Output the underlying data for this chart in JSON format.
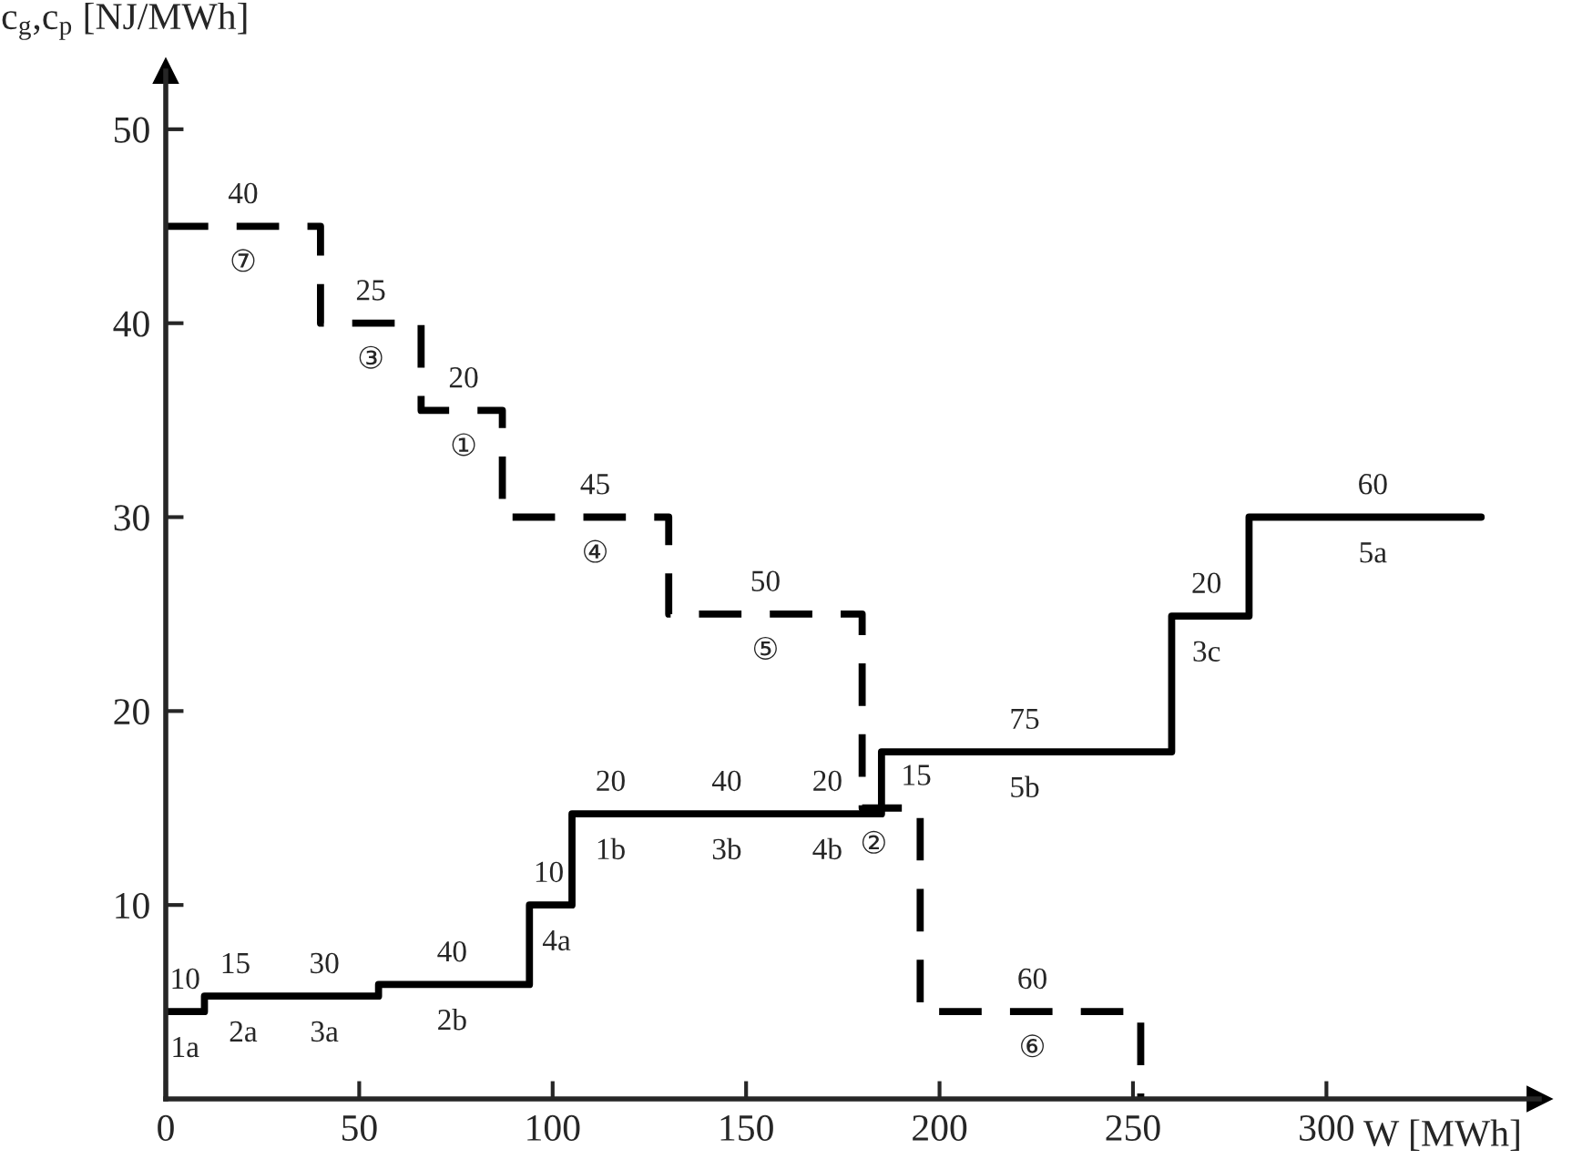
{
  "chart_data": {
    "type": "step",
    "ylabel": "c$_{g}$,c$_{p}$ [NJ/MWh]",
    "xlabel": "W [MWh]",
    "xlim": [
      0,
      355
    ],
    "ylim": [
      0,
      53
    ],
    "xticks": [
      0,
      50,
      100,
      150,
      200,
      250,
      300
    ],
    "yticks": [
      10,
      20,
      30,
      40,
      50
    ],
    "grid": false,
    "legend": false,
    "series": [
      {
        "color": "#000000",
        "line_style": "dashed",
        "x": [
          0,
          40,
          66,
          87,
          130,
          180,
          195,
          252
        ],
        "values": [
          45,
          40,
          35.5,
          30,
          25,
          15,
          4.5,
          0
        ]
      },
      {
        "color": "#000000",
        "line_style": "solid",
        "x": [
          0,
          10,
          55,
          94,
          105,
          185,
          260,
          280,
          340
        ],
        "values": [
          4.5,
          5.3,
          5.9,
          10,
          14.7,
          17.9,
          24.9,
          30,
          30
        ]
      }
    ],
    "annotations": [
      {
        "text": "40",
        "x": 20,
        "y": 45
      },
      {
        "text": "⑦",
        "x": 20,
        "y": 45
      },
      {
        "text": "25",
        "x": 53,
        "y": 40
      },
      {
        "text": "③",
        "x": 53,
        "y": 40
      },
      {
        "text": "20",
        "x": 77,
        "y": 35.5
      },
      {
        "text": "①",
        "x": 77,
        "y": 35.5
      },
      {
        "text": "45",
        "x": 111,
        "y": 30
      },
      {
        "text": "④",
        "x": 111,
        "y": 30
      },
      {
        "text": "50",
        "x": 155,
        "y": 25
      },
      {
        "text": "⑤",
        "x": 155,
        "y": 25
      },
      {
        "text": "15",
        "x": 194,
        "y": 15
      },
      {
        "text": "②",
        "x": 183,
        "y": 15
      },
      {
        "text": "60",
        "x": 224,
        "y": 4.5
      },
      {
        "text": "⑥",
        "x": 224,
        "y": 4.5
      },
      {
        "text": "10",
        "x": 5,
        "y": 4.5
      },
      {
        "text": "1a",
        "x": 5,
        "y": 4.5
      },
      {
        "text": "15",
        "x": 18,
        "y": 5.3
      },
      {
        "text": "2a",
        "x": 20,
        "y": 5.3
      },
      {
        "text": "30",
        "x": 41,
        "y": 5.3
      },
      {
        "text": "3a",
        "x": 41,
        "y": 5.3
      },
      {
        "text": "40",
        "x": 74,
        "y": 5.9
      },
      {
        "text": "2b",
        "x": 74,
        "y": 5.9
      },
      {
        "text": "10",
        "x": 99,
        "y": 10
      },
      {
        "text": "4a",
        "x": 101,
        "y": 10
      },
      {
        "text": "20",
        "x": 115,
        "y": 14.7
      },
      {
        "text": "1b",
        "x": 115,
        "y": 14.7
      },
      {
        "text": "40",
        "x": 145,
        "y": 14.7
      },
      {
        "text": "3b",
        "x": 145,
        "y": 14.7
      },
      {
        "text": "20",
        "x": 171,
        "y": 14.7
      },
      {
        "text": "4b",
        "x": 171,
        "y": 14.7
      },
      {
        "text": "75",
        "x": 222,
        "y": 17.9
      },
      {
        "text": "5b",
        "x": 222,
        "y": 17.9
      },
      {
        "text": "20",
        "x": 269,
        "y": 24.9
      },
      {
        "text": "3c",
        "x": 269,
        "y": 24.9
      },
      {
        "text": "60",
        "x": 312,
        "y": 30
      },
      {
        "text": "5a",
        "x": 312,
        "y": 30
      }
    ]
  }
}
